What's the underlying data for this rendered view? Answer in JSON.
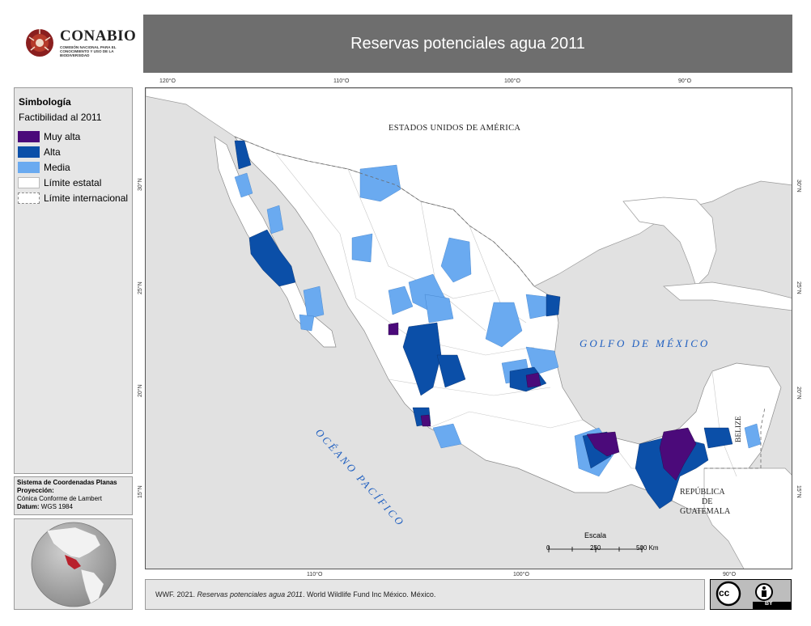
{
  "logo": {
    "name": "CONABIO",
    "subtitle": "COMISIÓN NACIONAL PARA EL CONOCIMIENTO Y USO DE LA BIODIVERSIDAD"
  },
  "title": "Reservas potenciales agua 2011",
  "legend": {
    "heading": "Simbología",
    "subheading": "Factibilidad al 2011",
    "items": [
      {
        "label": "Muy alta",
        "color": "#4b0a7a"
      },
      {
        "label": "Alta",
        "color": "#0b4fa8"
      },
      {
        "label": "Media",
        "color": "#6aaaf0"
      },
      {
        "label": "Límite estatal",
        "color": "#ffffff"
      },
      {
        "label": "Límite internacional",
        "color": "#ffffff"
      }
    ]
  },
  "projection": {
    "heading": "Sistema de Coordenadas Planas",
    "proj_label": "Proyección:",
    "proj_value": "Cónica Conforme de Lambert",
    "datum_label": "Datum:",
    "datum_value": "WGS 1984"
  },
  "graticule": {
    "top": [
      "120°O",
      "110°O",
      "100°O",
      "90°O"
    ],
    "bottom": [
      "110°O",
      "100°O",
      "90°O"
    ],
    "left": [
      "30°N",
      "25°N",
      "20°N",
      "15°N"
    ],
    "right": [
      "30°N",
      "25°N",
      "20°N",
      "15°N"
    ]
  },
  "map_labels": {
    "usa": "ESTADOS UNIDOS DE AMÉRICA",
    "gulf": "GOLFO DE MÉXICO",
    "pacific": "OCÉANO PACÍFICO",
    "belize": "BELIZE",
    "guatemala_1": "REPÚBLICA",
    "guatemala_2": "DE",
    "guatemala_3": "GUATEMALA"
  },
  "scale": {
    "title": "Escala",
    "ticks": [
      "0",
      "250",
      "500 Km"
    ]
  },
  "citation": {
    "pre": "WWF. 2021. ",
    "italic": "Reservas potenciales agua 2011",
    "post": ". World Wildlife Fund  Inc México. México."
  },
  "license": {
    "badge_cc": "cc",
    "badge_by": "BY"
  },
  "colors": {
    "water": "#e1e1e1",
    "land": "#ffffff",
    "titlebar": "#6e6e6e",
    "muy_alta": "#4b0a7a",
    "alta": "#0b4fa8",
    "media": "#6aaaf0"
  }
}
